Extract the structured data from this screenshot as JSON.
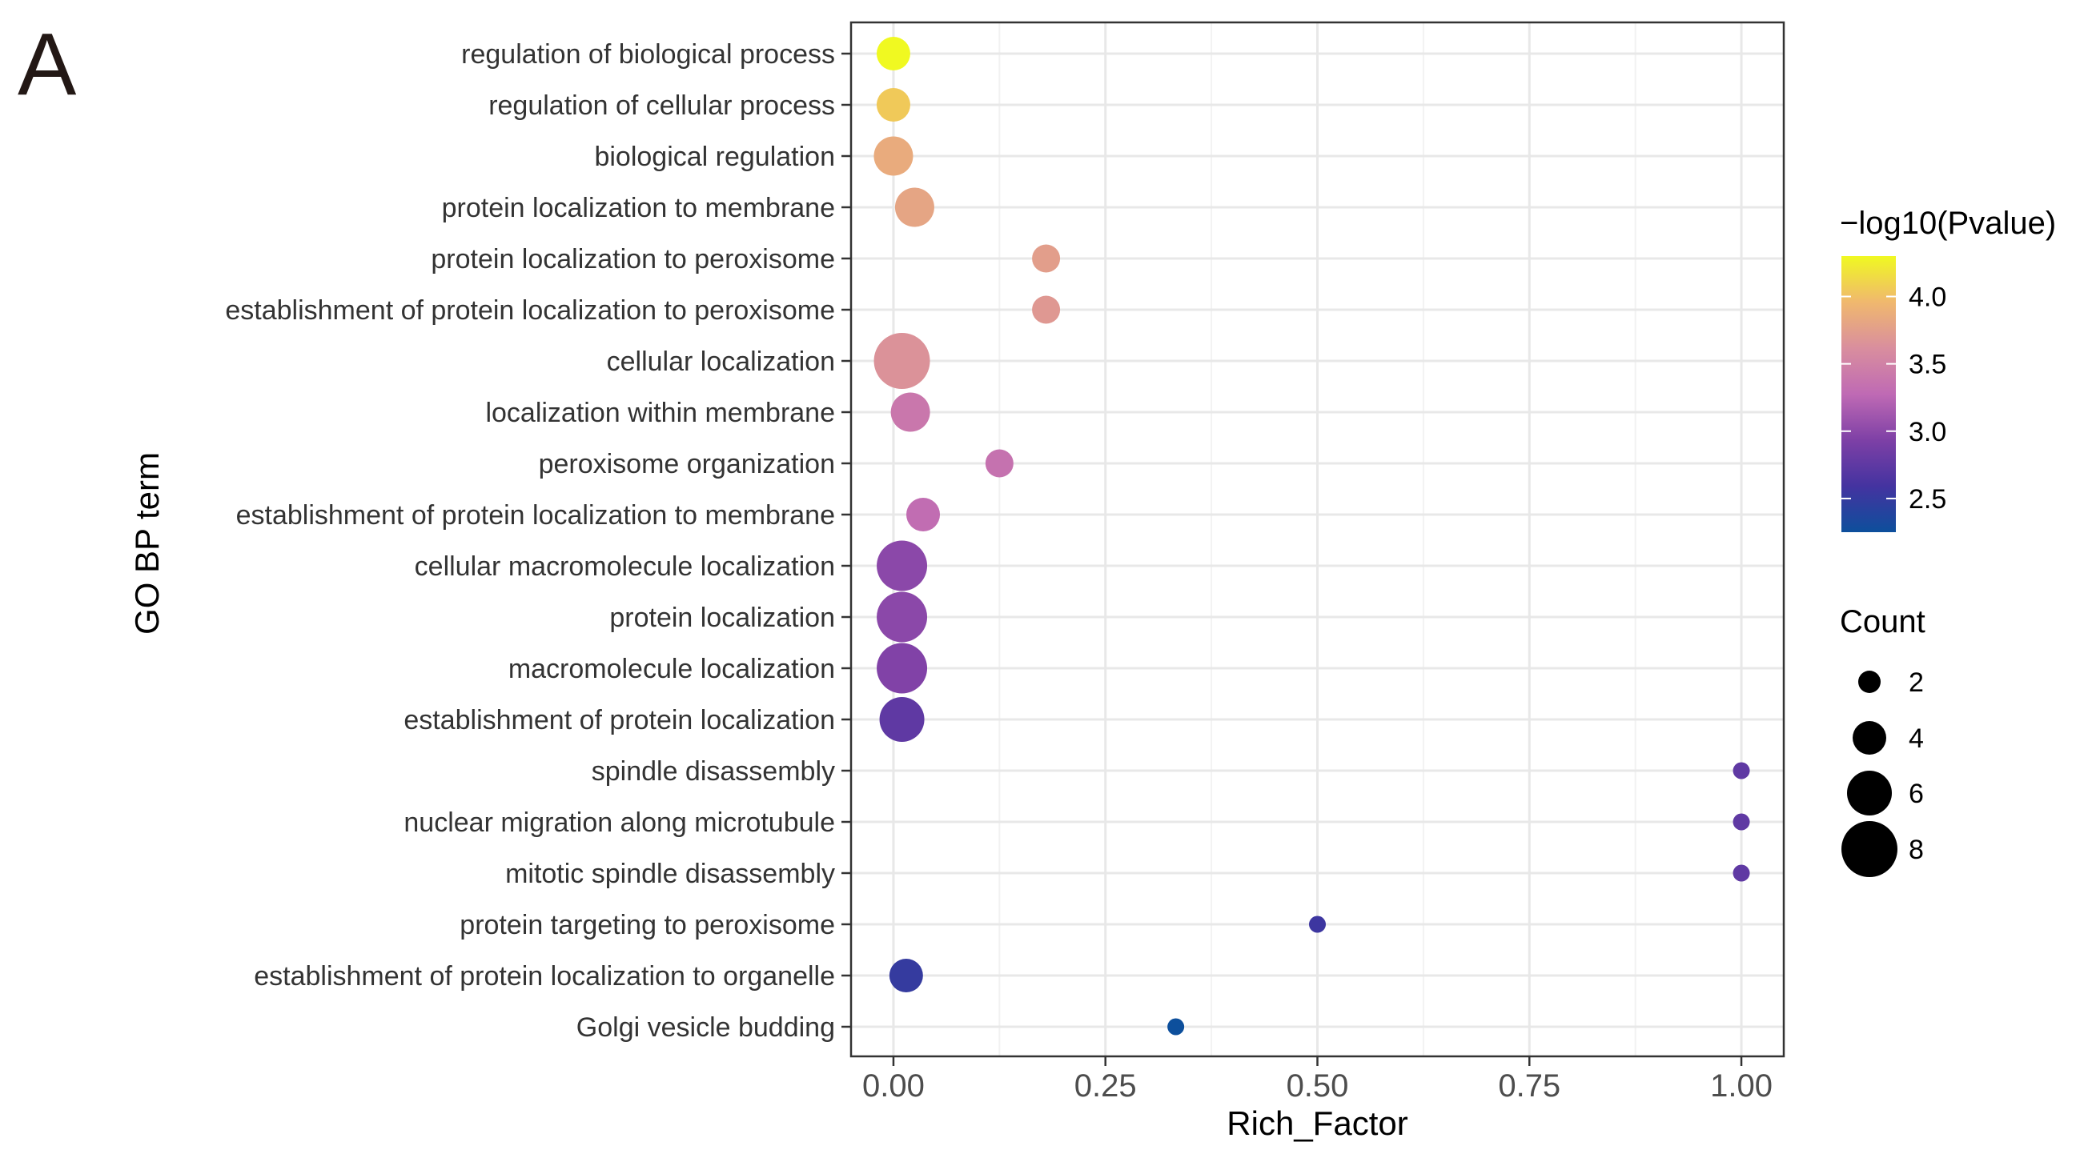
{
  "panel_label": "A",
  "chart_data": {
    "type": "scatter",
    "title": "",
    "xlabel": "Rich_Factor",
    "ylabel": "GO BP term",
    "xlim": [
      -0.05,
      1.05
    ],
    "x_ticks": [
      0.0,
      0.25,
      0.5,
      0.75,
      1.0
    ],
    "x_tick_labels": [
      "0.00",
      "0.25",
      "0.50",
      "0.75",
      "1.00"
    ],
    "grid": true,
    "color_legend": {
      "title": "−log10(Pvalue)",
      "range": [
        2.25,
        4.3
      ],
      "ticks": [
        4.0,
        3.5,
        3.0,
        2.5
      ],
      "tick_labels": [
        "4.0",
        "3.5",
        "3.0",
        "2.5"
      ],
      "colors": [
        "#F0F921",
        "#F0B86E",
        "#D98E9E",
        "#BF6AB4",
        "#7E40A6",
        "#4433A0",
        "#0D4F9C"
      ]
    },
    "size_legend": {
      "title": "Count",
      "values": [
        2,
        4,
        6,
        8
      ],
      "labels": [
        "2",
        "4",
        "6",
        "8"
      ]
    },
    "points": [
      {
        "term": "regulation of biological process",
        "rich_factor": 0.0,
        "count": 4,
        "neglog10p": 4.3
      },
      {
        "term": "regulation of cellular process",
        "rich_factor": 0.0,
        "count": 4,
        "neglog10p": 4.05
      },
      {
        "term": "biological regulation",
        "rich_factor": 0.0,
        "count": 5,
        "neglog10p": 3.85
      },
      {
        "term": "protein localization to membrane",
        "rich_factor": 0.025,
        "count": 5,
        "neglog10p": 3.8
      },
      {
        "term": "protein localization to peroxisome",
        "rich_factor": 0.18,
        "count": 3,
        "neglog10p": 3.75
      },
      {
        "term": "establishment of protein localization to peroxisome",
        "rich_factor": 0.18,
        "count": 3,
        "neglog10p": 3.7
      },
      {
        "term": "cellular localization",
        "rich_factor": 0.01,
        "count": 8,
        "neglog10p": 3.65
      },
      {
        "term": "localization within membrane",
        "rich_factor": 0.02,
        "count": 5,
        "neglog10p": 3.4
      },
      {
        "term": "peroxisome organization",
        "rich_factor": 0.125,
        "count": 3,
        "neglog10p": 3.35
      },
      {
        "term": "establishment of protein localization to membrane",
        "rich_factor": 0.035,
        "count": 4,
        "neglog10p": 3.3
      },
      {
        "term": "cellular macromolecule localization",
        "rich_factor": 0.01,
        "count": 7,
        "neglog10p": 3.0
      },
      {
        "term": "protein localization",
        "rich_factor": 0.01,
        "count": 7,
        "neglog10p": 3.0
      },
      {
        "term": "macromolecule localization",
        "rich_factor": 0.01,
        "count": 7,
        "neglog10p": 2.95
      },
      {
        "term": "establishment of protein localization",
        "rich_factor": 0.01,
        "count": 6,
        "neglog10p": 2.75
      },
      {
        "term": "spindle disassembly",
        "rich_factor": 1.0,
        "count": 1,
        "neglog10p": 2.75
      },
      {
        "term": "nuclear migration along microtubule",
        "rich_factor": 1.0,
        "count": 1,
        "neglog10p": 2.75
      },
      {
        "term": "mitotic spindle disassembly",
        "rich_factor": 1.0,
        "count": 1,
        "neglog10p": 2.75
      },
      {
        "term": "protein targeting to peroxisome",
        "rich_factor": 0.5,
        "count": 1,
        "neglog10p": 2.55
      },
      {
        "term": "establishment of protein localization to organelle",
        "rich_factor": 0.015,
        "count": 4,
        "neglog10p": 2.5
      },
      {
        "term": "Golgi vesicle budding",
        "rich_factor": 0.333,
        "count": 1,
        "neglog10p": 2.25
      }
    ]
  }
}
